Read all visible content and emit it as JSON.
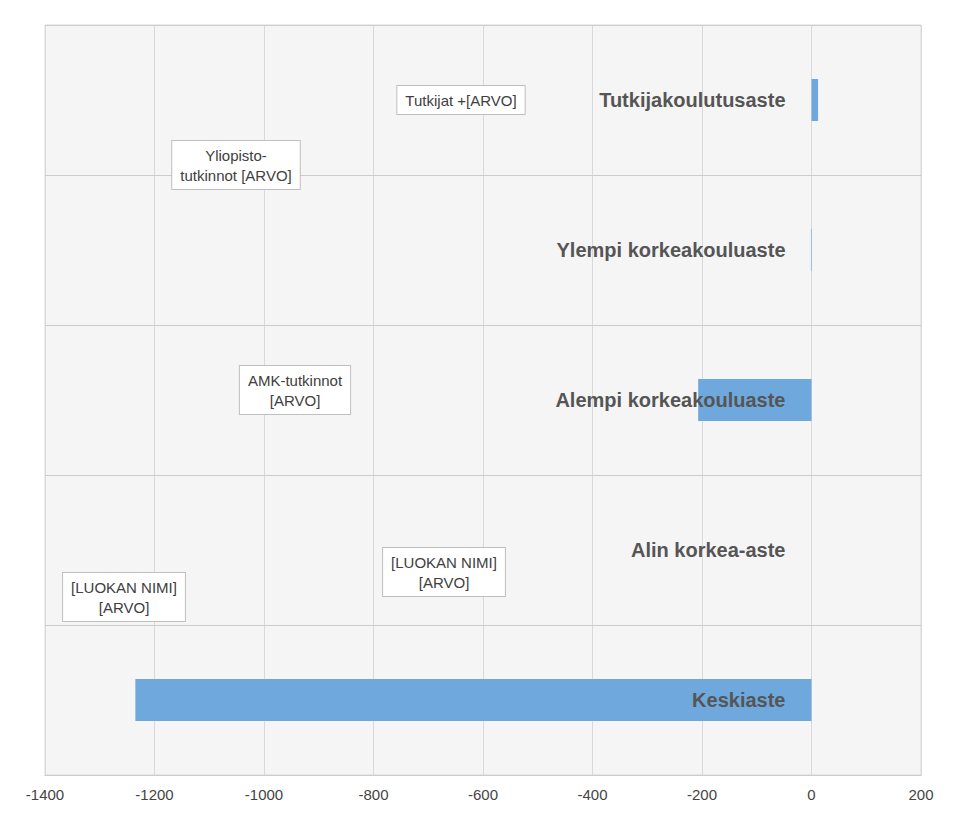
{
  "chart_data": {
    "type": "bar",
    "orientation": "horizontal",
    "categories": [
      "Keskiaste",
      "Alin korkea-aste",
      "Alempi korkeakouluaste",
      "Ylempi korkeakouluaste",
      "Tutkijakoulutusaste"
    ],
    "values": [
      -1235,
      0,
      -207,
      -1,
      12
    ],
    "color": "#6fa8dc",
    "xlim": [
      -1400,
      200
    ],
    "xticks": [
      -1400,
      -1200,
      -1000,
      -800,
      -600,
      -400,
      -200,
      0,
      200
    ],
    "grid": true,
    "annotations": [
      "Tutkijat +[ARVO]",
      "Yliopisto-\ntutkinnot [ARVO]",
      "AMK-tutkinnot\n[ARVO]",
      "[LUOKAN NIMI]\n[ARVO]",
      "[LUOKAN NIMI]\n[ARVO]"
    ]
  }
}
